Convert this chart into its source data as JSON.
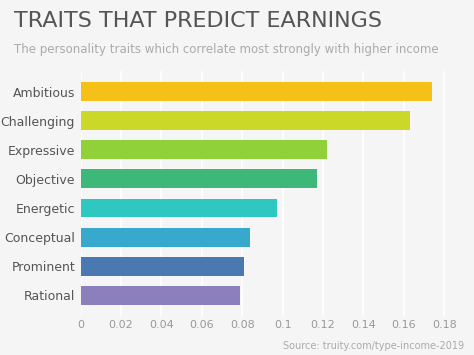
{
  "title": "TRAITS THAT PREDICT EARNINGS",
  "subtitle": "The personality traits which correlate most strongly with higher income",
  "source": "Source: truity.com/type-income-2019",
  "categories": [
    "Rational",
    "Prominent",
    "Conceptual",
    "Energetic",
    "Objective",
    "Expressive",
    "Challenging",
    "Ambitious"
  ],
  "values": [
    0.079,
    0.081,
    0.084,
    0.097,
    0.117,
    0.122,
    0.163,
    0.174
  ],
  "bar_colors": [
    "#8b80bc",
    "#4a78b0",
    "#38a8cc",
    "#2ec8c0",
    "#3db878",
    "#90d038",
    "#ccd828",
    "#f5c018"
  ],
  "xlim": [
    0,
    0.19
  ],
  "xticks": [
    0,
    0.02,
    0.04,
    0.06,
    0.08,
    0.1,
    0.12,
    0.14,
    0.16,
    0.18
  ],
  "xtick_labels": [
    "0",
    "0.02",
    "0.04",
    "0.06",
    "0.08",
    "0.1",
    "0.12",
    "0.14",
    "0.16",
    "0.18"
  ],
  "background_color": "#f5f5f5",
  "title_fontsize": 16,
  "subtitle_fontsize": 8.5,
  "bar_height": 0.65,
  "label_fontsize": 9,
  "tick_fontsize": 8
}
